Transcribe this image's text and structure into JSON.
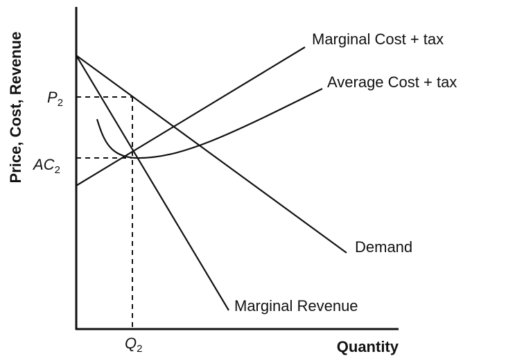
{
  "diagram": {
    "y_axis_label": "Price, Cost, Revenue",
    "x_axis_label": "Quantity",
    "curves": [
      {
        "label": "Marginal Cost + tax"
      },
      {
        "label": "Average Cost + tax"
      },
      {
        "label": "Demand"
      },
      {
        "label": "Marginal Revenue"
      }
    ],
    "markers": {
      "price": {
        "letter": "P",
        "subscript": "2"
      },
      "average_cost": {
        "letter": "AC",
        "subscript": "2"
      },
      "quantity": {
        "letter": "Q",
        "subscript": "2"
      }
    }
  }
}
